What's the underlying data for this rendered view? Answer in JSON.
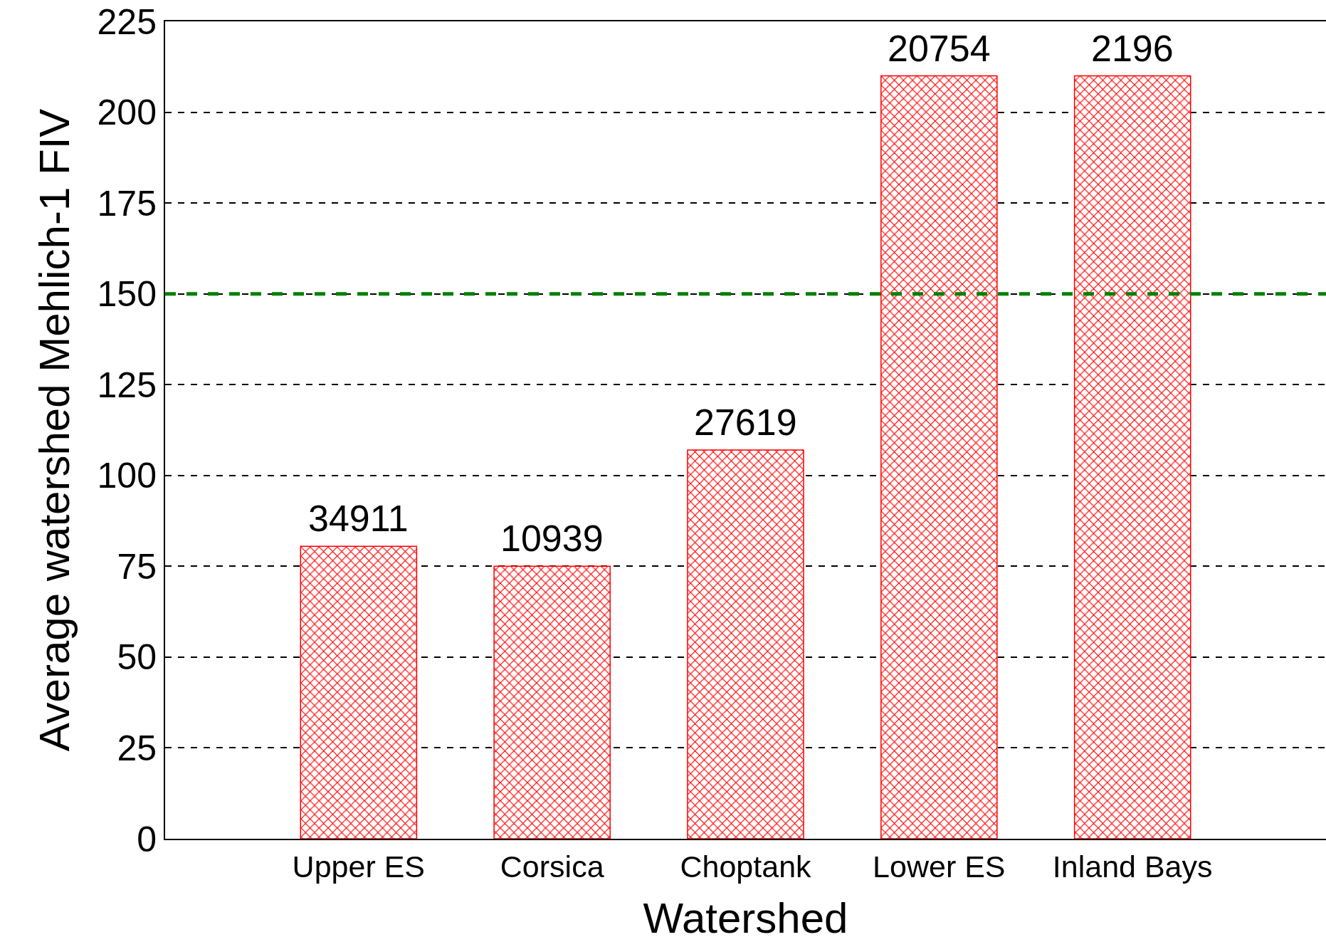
{
  "chart_data": {
    "type": "bar",
    "xlabel": "Watershed",
    "ylabel": "Average watershed Mehlich-1 FIV",
    "categories": [
      "Upper ES",
      "Corsica",
      "Choptank",
      "Lower ES",
      "Inland Bays"
    ],
    "values": [
      80.5,
      75,
      107,
      210,
      210
    ],
    "annotations": [
      {
        "text": "34911",
        "x": "Upper ES",
        "y": 80.5
      },
      {
        "text": "10939",
        "x": "Corsica",
        "y": 75
      },
      {
        "text": "27619",
        "x": "Choptank",
        "y": 107
      },
      {
        "text": "20754",
        "x": "Lower ES",
        "y": 210
      },
      {
        "text": "2196",
        "x": "Inland Bays",
        "y": 210
      }
    ],
    "color": "#ff0000",
    "ylim": [
      0,
      225
    ],
    "yticks": [
      0,
      25,
      50,
      75,
      100,
      125,
      150,
      175,
      200,
      225
    ],
    "grid": "y",
    "ref_lines": [
      {
        "axis": "y",
        "value": 150,
        "color": "#008000",
        "line_style": "dashed"
      }
    ]
  }
}
